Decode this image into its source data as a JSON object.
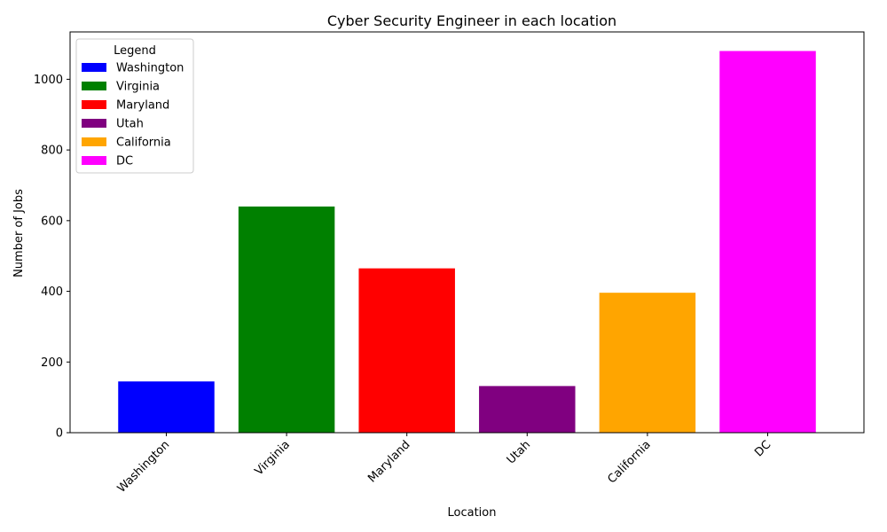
{
  "chart_data": {
    "type": "bar",
    "title": "Cyber Security Engineer in each location",
    "xlabel": "Location",
    "ylabel": "Number of Jobs",
    "categories": [
      "Washington",
      "Virginia",
      "Maryland",
      "Utah",
      "California",
      "DC"
    ],
    "values": [
      145,
      640,
      465,
      132,
      396,
      1080
    ],
    "colors": [
      "#0000ff",
      "#008000",
      "#ff0000",
      "#800080",
      "#ffa500",
      "#ff00ff"
    ],
    "ylim": [
      0,
      1134
    ],
    "yticks": [
      0,
      200,
      400,
      600,
      800,
      1000
    ],
    "xtick_rotation": 45,
    "grid": false,
    "legend": {
      "title": "Legend",
      "placement": "upper-left",
      "entries": [
        "Washington",
        "Virginia",
        "Maryland",
        "Utah",
        "California",
        "DC"
      ]
    }
  }
}
